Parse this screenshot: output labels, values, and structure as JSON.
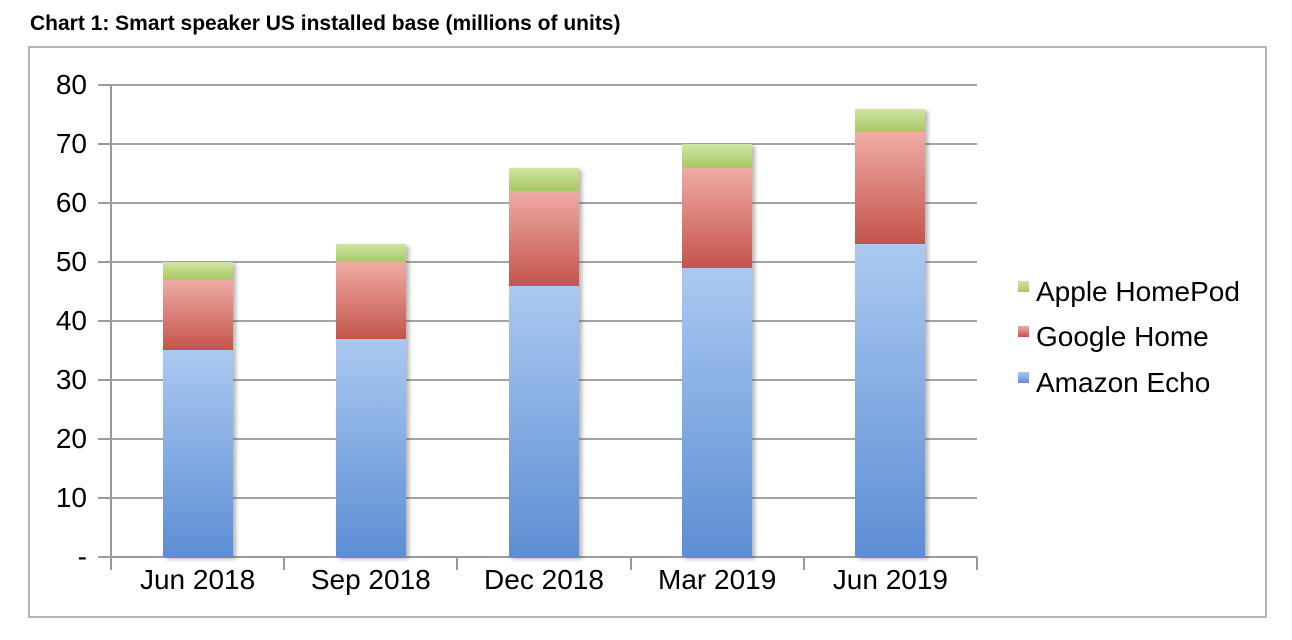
{
  "figure": {
    "title": "Chart 1: Smart speaker US installed base (millions of units)"
  },
  "chart_data": {
    "type": "bar",
    "stacked": true,
    "title": "Chart 1: Smart speaker US installed base (millions of units)",
    "categories": [
      "Jun 2018",
      "Sep 2018",
      "Dec 2018",
      "Mar 2019",
      "Jun 2019"
    ],
    "series": [
      {
        "name": "Amazon Echo",
        "values": [
          35,
          37,
          46,
          49,
          53
        ],
        "color_top": "#abc9f1",
        "color_bottom": "#5d8ed4"
      },
      {
        "name": "Google Home",
        "values": [
          12,
          13,
          16,
          17,
          19
        ],
        "color_top": "#f0aba6",
        "color_bottom": "#c3544b"
      },
      {
        "name": "Apple HomePod",
        "values": [
          3,
          3,
          4,
          4,
          4
        ],
        "color_top": "#cfe5a3",
        "color_bottom": "#a9c763"
      }
    ],
    "totals": [
      50,
      53,
      66,
      70,
      76
    ],
    "xlabel": "",
    "ylabel": "",
    "ylim": [
      0,
      80
    ],
    "ytick_step": 10,
    "ytick_labels": [
      "-",
      "10",
      "20",
      "30",
      "40",
      "50",
      "60",
      "70",
      "80"
    ],
    "grid": true,
    "legend_position": "right",
    "legend_order": [
      "Apple HomePod",
      "Google Home",
      "Amazon Echo"
    ]
  },
  "colors": {
    "gridline": "#a4a4a4",
    "axis": "#9a9a9a",
    "box_border": "#b4b4b4",
    "text": "#000000",
    "background": "#ffffff"
  }
}
